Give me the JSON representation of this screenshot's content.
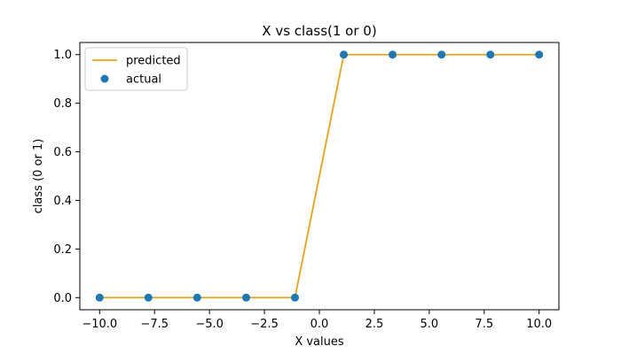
{
  "chart_data": {
    "type": "line",
    "title": "X vs class(1 or 0)",
    "xlabel": "X values",
    "ylabel": "class (0 or 1)",
    "xlim": [
      -10.9,
      10.9
    ],
    "ylim": [
      -0.05,
      1.05
    ],
    "x_ticks": [
      -10.0,
      -7.5,
      -5.0,
      -2.5,
      0.0,
      2.5,
      5.0,
      7.5,
      10.0
    ],
    "x_tick_labels": [
      "−10.0",
      "−7.5",
      "−5.0",
      "−2.5",
      "0.0",
      "2.5",
      "5.0",
      "7.5",
      "10.0"
    ],
    "y_ticks": [
      0.0,
      0.2,
      0.4,
      0.6,
      0.8,
      1.0
    ],
    "y_tick_labels": [
      "0.0",
      "0.2",
      "0.4",
      "0.6",
      "0.8",
      "1.0"
    ],
    "grid": false,
    "legend_position": "top-left",
    "series": [
      {
        "name": "predicted",
        "kind": "line",
        "color": "#e6a41e",
        "x": [
          -10.0,
          -7.78,
          -5.56,
          -3.33,
          -1.11,
          1.11,
          3.33,
          5.56,
          7.78,
          10.0
        ],
        "y": [
          0,
          0,
          0,
          0,
          0,
          1,
          1,
          1,
          1,
          1
        ]
      },
      {
        "name": "actual",
        "kind": "scatter",
        "color": "#1f77b4",
        "x": [
          -10.0,
          -7.78,
          -5.56,
          -3.33,
          -1.11,
          1.11,
          3.33,
          5.56,
          7.78,
          10.0
        ],
        "y": [
          0,
          0,
          0,
          0,
          0,
          1,
          1,
          1,
          1,
          1
        ]
      }
    ]
  }
}
